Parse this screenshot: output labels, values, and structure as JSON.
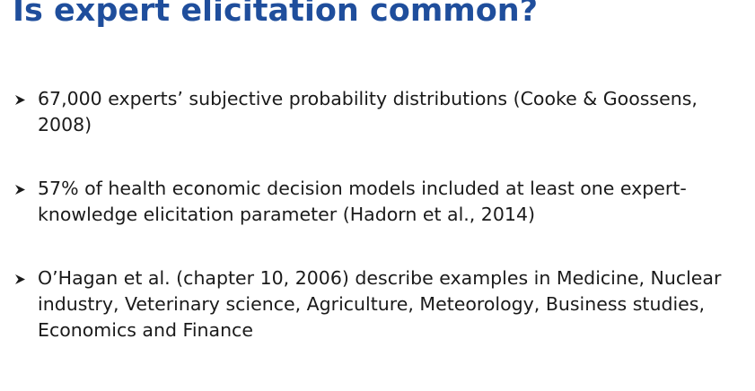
{
  "slide": {
    "title": "Is expert elicitation common?",
    "bullets": [
      {
        "text": "67,000 experts’ subjective probability distributions (Cooke & Goossens, 2008)",
        "icon": "arrow-bullet-icon"
      },
      {
        "text": "57% of health economic decision models included at least one expert-knowledge elicitation parameter (Hadorn et al., 2014)",
        "icon": "arrow-bullet-icon"
      },
      {
        "text": "O’Hagan et al. (chapter 10, 2006) describe examples in Medicine, Nuclear industry, Veterinary science, Agriculture, Meteorology, Business studies, Economics and Finance",
        "icon": "arrow-bullet-icon"
      }
    ]
  },
  "colors": {
    "title": "#1f4e9c",
    "text": "#1a1a1a",
    "background": "#ffffff"
  }
}
